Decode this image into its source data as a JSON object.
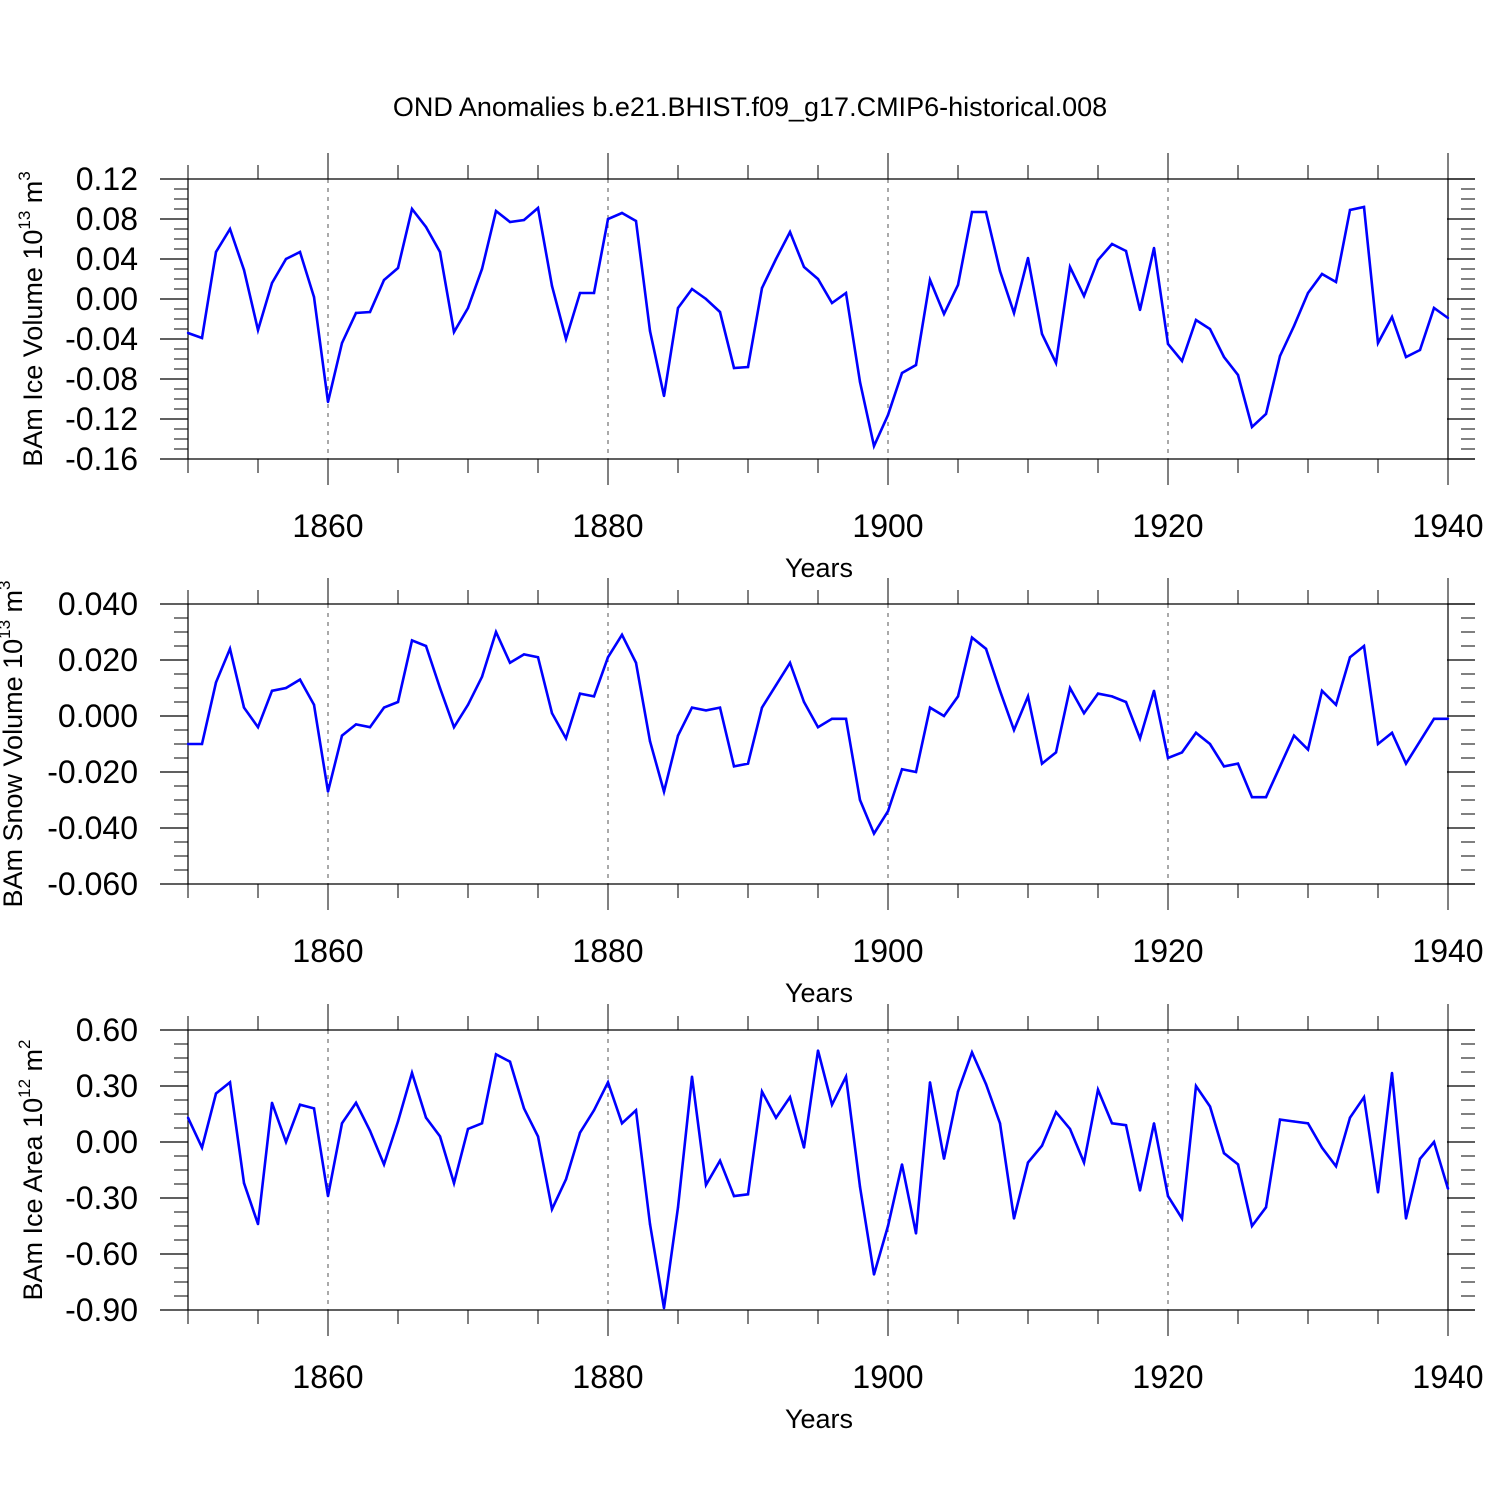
{
  "title": "OND Anomalies b.e21.BHIST.f09_g17.CMIP6-historical.008",
  "series_color": "#0000ff",
  "chart_data": [
    {
      "type": "line",
      "ylabel": "BAm Ice Volume 10^13 m^3",
      "ylabel_parts": {
        "main": "BAm Ice Volume 10",
        "exp1": "13",
        "unit": " m",
        "exp2": "3"
      },
      "xlabel": "Years",
      "xlim": [
        1850,
        1940
      ],
      "ylim": [
        -0.16,
        0.12
      ],
      "yticks": [
        "0.12",
        "0.08",
        "0.04",
        "0.00",
        "-0.04",
        "-0.08",
        "-0.12",
        "-0.16"
      ],
      "ytick_values": [
        0.12,
        0.08,
        0.04,
        0.0,
        -0.04,
        -0.08,
        -0.12,
        -0.16
      ],
      "xticks": [
        "1860",
        "1880",
        "1900",
        "1920",
        "1940"
      ],
      "xtick_values": [
        1860,
        1880,
        1900,
        1920,
        1940
      ],
      "x_start": 1850,
      "values": [
        -0.034,
        -0.039,
        0.047,
        0.07,
        0.029,
        -0.031,
        0.016,
        0.04,
        0.047,
        0.002,
        -0.103,
        -0.044,
        -0.014,
        -0.013,
        0.019,
        0.031,
        0.09,
        0.072,
        0.047,
        -0.033,
        -0.009,
        0.03,
        0.088,
        0.077,
        0.079,
        0.091,
        0.013,
        -0.04,
        0.006,
        0.006,
        0.08,
        0.086,
        0.078,
        -0.032,
        -0.097,
        -0.009,
        0.01,
        0.0,
        -0.013,
        -0.069,
        -0.068,
        0.011,
        0.04,
        0.067,
        0.032,
        0.02,
        -0.004,
        0.006,
        -0.083,
        -0.147,
        -0.116,
        -0.074,
        -0.066,
        0.019,
        -0.015,
        0.014,
        0.087,
        0.087,
        0.028,
        -0.014,
        0.041,
        -0.035,
        -0.064,
        0.032,
        0.003,
        0.039,
        0.055,
        0.048,
        -0.011,
        0.051,
        -0.045,
        -0.062,
        -0.021,
        -0.03,
        -0.058,
        -0.076,
        -0.128,
        -0.115,
        -0.057,
        -0.027,
        0.006,
        0.025,
        0.017,
        0.089,
        0.092,
        -0.044,
        -0.018,
        -0.058,
        -0.051,
        -0.009,
        -0.019
      ]
    },
    {
      "type": "line",
      "ylabel": "BAm Snow Volume 10^13 m^3",
      "ylabel_parts": {
        "main": "BAm Snow Volume 10",
        "exp1": "13",
        "unit": " m",
        "exp2": "3"
      },
      "xlabel": "Years",
      "xlim": [
        1850,
        1940
      ],
      "ylim": [
        -0.06,
        0.04
      ],
      "yticks": [
        "0.040",
        "0.020",
        "0.000",
        "-0.020",
        "-0.040",
        "-0.060"
      ],
      "ytick_values": [
        0.04,
        0.02,
        0.0,
        -0.02,
        -0.04,
        -0.06
      ],
      "xticks": [
        "1860",
        "1880",
        "1900",
        "1920",
        "1940"
      ],
      "xtick_values": [
        1860,
        1880,
        1900,
        1920,
        1940
      ],
      "x_start": 1850,
      "values": [
        -0.01,
        -0.01,
        0.012,
        0.024,
        0.003,
        -0.004,
        0.009,
        0.01,
        0.013,
        0.004,
        -0.027,
        -0.007,
        -0.003,
        -0.004,
        0.003,
        0.005,
        0.027,
        0.025,
        0.01,
        -0.004,
        0.004,
        0.014,
        0.03,
        0.019,
        0.022,
        0.021,
        0.001,
        -0.008,
        0.008,
        0.007,
        0.021,
        0.029,
        0.019,
        -0.009,
        -0.027,
        -0.007,
        0.003,
        0.002,
        0.003,
        -0.018,
        -0.017,
        0.003,
        0.011,
        0.019,
        0.005,
        -0.004,
        -0.001,
        -0.001,
        -0.03,
        -0.042,
        -0.034,
        -0.019,
        -0.02,
        0.003,
        0.0,
        0.007,
        0.028,
        0.024,
        0.009,
        -0.005,
        0.007,
        -0.017,
        -0.013,
        0.01,
        0.001,
        0.008,
        0.007,
        0.005,
        -0.008,
        0.009,
        -0.015,
        -0.013,
        -0.006,
        -0.01,
        -0.018,
        -0.017,
        -0.029,
        -0.029,
        -0.018,
        -0.007,
        -0.012,
        0.009,
        0.004,
        0.021,
        0.025,
        -0.01,
        -0.006,
        -0.017,
        -0.009,
        -0.001,
        -0.001
      ]
    },
    {
      "type": "line",
      "ylabel": "BAm Ice Area 10^12 m^2",
      "ylabel_parts": {
        "main": "BAm Ice Area 10",
        "exp1": "12",
        "unit": " m",
        "exp2": "2"
      },
      "xlabel": "Years",
      "xlim": [
        1850,
        1940
      ],
      "ylim": [
        -0.9,
        0.6
      ],
      "yticks": [
        "0.60",
        "0.30",
        "0.00",
        "-0.30",
        "-0.60",
        "-0.90"
      ],
      "ytick_values": [
        0.6,
        0.3,
        0.0,
        -0.3,
        -0.6,
        -0.9
      ],
      "xticks": [
        "1860",
        "1880",
        "1900",
        "1920",
        "1940"
      ],
      "xtick_values": [
        1860,
        1880,
        1900,
        1920,
        1940
      ],
      "x_start": 1850,
      "values": [
        0.13,
        -0.03,
        0.26,
        0.32,
        -0.22,
        -0.44,
        0.21,
        0.0,
        0.2,
        0.18,
        -0.29,
        0.1,
        0.21,
        0.06,
        -0.12,
        0.11,
        0.37,
        0.13,
        0.03,
        -0.22,
        0.07,
        0.1,
        0.47,
        0.43,
        0.18,
        0.03,
        -0.36,
        -0.2,
        0.05,
        0.17,
        0.32,
        0.1,
        0.17,
        -0.44,
        -0.89,
        -0.35,
        0.35,
        -0.23,
        -0.1,
        -0.29,
        -0.28,
        0.27,
        0.13,
        0.24,
        -0.03,
        0.49,
        0.2,
        0.35,
        -0.24,
        -0.71,
        -0.45,
        -0.12,
        -0.49,
        0.32,
        -0.09,
        0.27,
        0.48,
        0.31,
        0.1,
        -0.41,
        -0.11,
        -0.02,
        0.16,
        0.07,
        -0.11,
        0.28,
        0.1,
        0.09,
        -0.26,
        0.1,
        -0.29,
        -0.41,
        0.3,
        0.19,
        -0.06,
        -0.12,
        -0.45,
        -0.35,
        0.12,
        0.11,
        0.1,
        -0.03,
        -0.13,
        0.13,
        0.24,
        -0.27,
        0.37,
        -0.41,
        -0.09,
        0.0,
        -0.25
      ]
    }
  ]
}
